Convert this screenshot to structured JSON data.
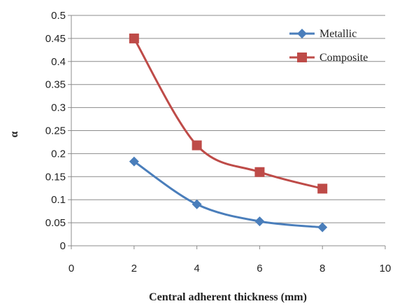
{
  "chart_data": {
    "type": "line",
    "title": "",
    "xlabel": "Central adherent thickness (mm)",
    "ylabel": "α",
    "xlim": [
      0,
      10
    ],
    "ylim": [
      0,
      0.5
    ],
    "x_ticks": [
      "0",
      "2",
      "4",
      "6",
      "8",
      "10"
    ],
    "y_ticks": [
      "0",
      "0.05",
      "0.1",
      "0.15",
      "0.2",
      "0.25",
      "0.3",
      "0.35",
      "0.4",
      "0.45",
      "0.5"
    ],
    "grid": "horizontal",
    "legend_position": "top-right",
    "series": [
      {
        "name": "Metallic",
        "color": "#4a7ebb",
        "marker": "diamond",
        "x": [
          2,
          4,
          6,
          8
        ],
        "y": [
          0.183,
          0.09,
          0.053,
          0.04
        ]
      },
      {
        "name": "Composite",
        "color": "#be4b48",
        "marker": "square",
        "x": [
          2,
          4,
          6,
          8
        ],
        "y": [
          0.45,
          0.218,
          0.16,
          0.124
        ]
      }
    ]
  }
}
